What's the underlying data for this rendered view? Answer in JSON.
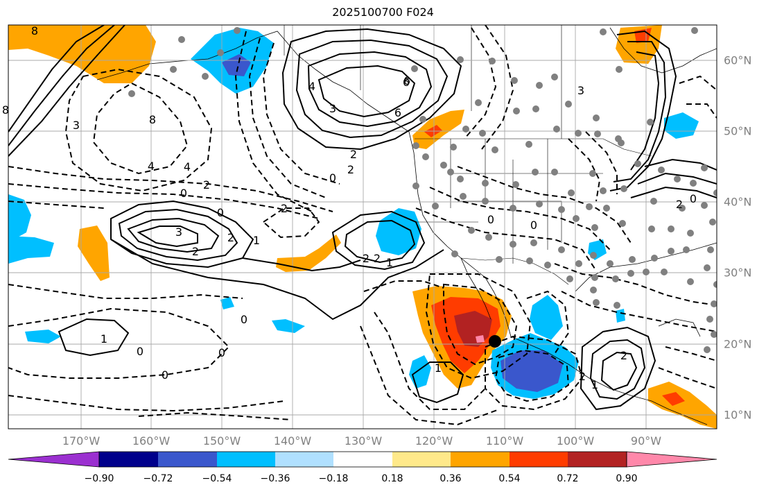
{
  "title": "2025100700 F024",
  "longitude_labels": [
    "170°W",
    "160°W",
    "150°W",
    "140°W",
    "130°W",
    "120°W",
    "110°W",
    "100°W",
    "90°W"
  ],
  "latitude_labels": [
    "60°N",
    "50°N",
    "40°N",
    "30°N",
    "20°N",
    "10°N"
  ],
  "colorbar": {
    "colors": [
      "#9b30d0",
      "#00008b",
      "#3a57cc",
      "#00bfff",
      "#b0e0ff",
      "#ffffff",
      "#ffe98a",
      "#ffa500",
      "#ff3c00",
      "#b22222",
      "#ff88aa"
    ],
    "tick_labels": [
      "−0.90",
      "−0.72",
      "−0.54",
      "−0.36",
      "−0.18",
      "0.18",
      "0.36",
      "0.54",
      "0.72",
      "0.90"
    ]
  },
  "contour_labels": [
    "4",
    "2",
    "0",
    "3",
    "2",
    "1",
    "2",
    "0",
    "1",
    "0",
    "2",
    "1",
    "0",
    "3",
    "6",
    "4",
    "2",
    "0",
    "2",
    "2",
    "2",
    "1",
    "0",
    "1",
    "2",
    "2",
    "1",
    "0",
    "8",
    "3",
    "6",
    "8"
  ],
  "marker_colors": {
    "station": "#808080",
    "center": "#000000"
  }
}
